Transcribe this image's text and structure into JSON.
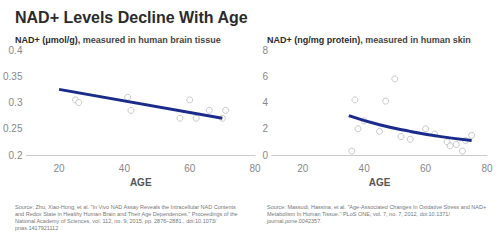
{
  "title": "NAD+ Levels Decline With Age",
  "chart_data": [
    {
      "type": "scatter",
      "y_label": "NAD+ (μmol/g), measured in human brain tissue",
      "x_label": "AGE",
      "source": "Source: Zhu, Xiao-Hong, et al. \"In Vivo NAD Assay Reveals the Intracellular NAD Contents and Redox State in Healthy Human Brain and Their Age Dependences.\" Proceedings of the National Academy of Sciences, vol. 112, no. 9, 2015, pp. 2876–2881., doi:10.1073/pnas.1417921112",
      "xlim": [
        10,
        80
      ],
      "xticks": [
        20,
        40,
        60,
        80
      ],
      "ylim": [
        0.2,
        0.4
      ],
      "yticks": [
        0.2,
        0.25,
        0.3,
        0.35,
        0.4
      ],
      "grid": false,
      "series": [
        {
          "type": "scatter",
          "color": "#bbbbbb",
          "marker": "open_circle",
          "x": [
            25,
            26,
            41,
            42,
            57,
            60,
            62,
            66,
            70,
            71
          ],
          "values": [
            0.305,
            0.3,
            0.31,
            0.285,
            0.27,
            0.305,
            0.27,
            0.285,
            0.27,
            0.285
          ]
        },
        {
          "type": "line",
          "color": "#1b2b8c",
          "line_style": "solid",
          "x": [
            20,
            70
          ],
          "values": [
            0.325,
            0.27
          ]
        }
      ]
    },
    {
      "type": "scatter",
      "y_label": "NAD+ (ng/mg protein), measured in human skin",
      "x_label": "AGE",
      "source": "Source: Massudi, Hassina, et al. \"Age-Associated Changes In Oxidative Stress and NAD+ Metabolism In Human Tissue.\" PLoS ONE, vol. 7, no. 7, 2012, doi:10.1371/journal.pone.0042357.",
      "xlim": [
        10,
        80
      ],
      "xticks": [
        20,
        40,
        60,
        80
      ],
      "ylim": [
        0,
        8
      ],
      "yticks": [
        0,
        2,
        4,
        6,
        8
      ],
      "grid": false,
      "series": [
        {
          "type": "scatter",
          "color": "#bbbbbb",
          "marker": "open_circle",
          "x": [
            36,
            37,
            38,
            40,
            45,
            47,
            50,
            52,
            55,
            60,
            63,
            67,
            68,
            70,
            72,
            73,
            75
          ],
          "values": [
            0.3,
            4.2,
            2.0,
            2.6,
            1.8,
            4.1,
            5.8,
            1.4,
            1.2,
            2.0,
            1.6,
            1.0,
            0.7,
            0.8,
            0.3,
            1.1,
            1.5
          ]
        },
        {
          "type": "line",
          "color": "#1b2b8c",
          "line_style": "solid",
          "x": [
            35,
            45,
            55,
            65,
            75
          ],
          "values": [
            3.0,
            2.3,
            1.8,
            1.4,
            1.1
          ]
        }
      ]
    }
  ]
}
